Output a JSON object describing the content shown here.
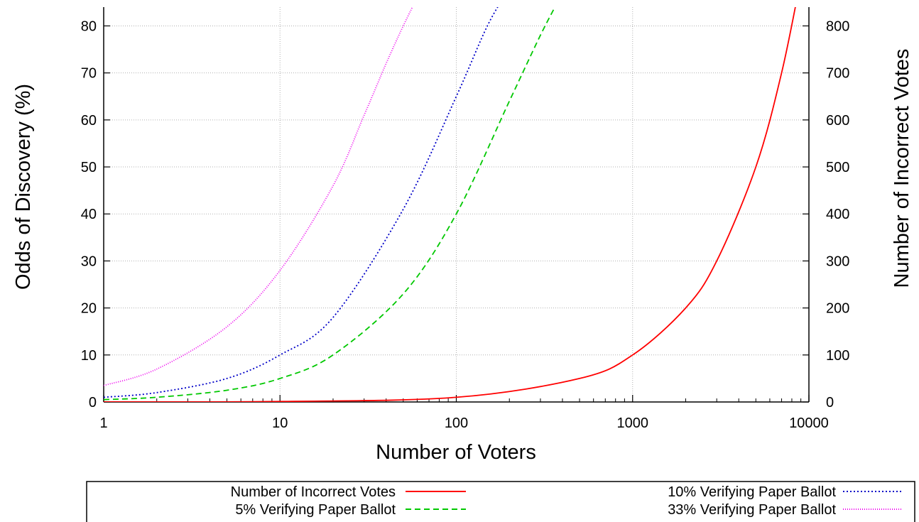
{
  "chart_data": {
    "type": "line",
    "xlabel": "Number of Voters",
    "ylabel": "Odds of Discovery (%)",
    "y2label": "Number of Incorrect Votes",
    "x_scale": "log",
    "xlim": [
      1,
      10000
    ],
    "ylim": [
      0,
      84
    ],
    "y2lim": [
      0,
      840
    ],
    "x_ticks": [
      1,
      10,
      100,
      1000,
      10000
    ],
    "x_tick_labels": [
      "1",
      "10",
      "100",
      "1000",
      "10000"
    ],
    "y_ticks": [
      0,
      10,
      20,
      30,
      40,
      50,
      60,
      70,
      80
    ],
    "y_tick_labels": [
      "0",
      "10",
      "20",
      "30",
      "40",
      "50",
      "60",
      "70",
      "80"
    ],
    "y2_ticks": [
      0,
      100,
      200,
      300,
      400,
      500,
      600,
      700,
      800
    ],
    "y2_tick_labels": [
      "0",
      "100",
      "200",
      "300",
      "400",
      "500",
      "600",
      "700",
      "800"
    ],
    "grid": true,
    "legend_position": "bottom",
    "series": [
      {
        "name": "Number of Incorrect Votes",
        "axis": "right",
        "color": "#ff0000",
        "style": "solid",
        "x": [
          1,
          10,
          100,
          500,
          1000,
          2000,
          3000,
          5000,
          7000,
          9000
        ],
        "values": [
          0.1,
          1,
          10,
          50,
          100,
          200,
          300,
          500,
          700,
          900
        ]
      },
      {
        "name": "10% Verifying Paper Ballot",
        "axis": "left",
        "color": "#0000c8",
        "style": "dotted",
        "x": [
          1,
          2,
          5,
          10,
          20,
          50,
          100,
          150,
          200
        ],
        "values": [
          1,
          2,
          5,
          10,
          18,
          41,
          65,
          80,
          88
        ]
      },
      {
        "name": "5% Verifying Paper Ballot",
        "axis": "left",
        "color": "#00c800",
        "style": "dashed",
        "x": [
          1,
          2,
          5,
          10,
          20,
          50,
          100,
          200,
          300,
          400
        ],
        "values": [
          0.5,
          1,
          2.5,
          5,
          10,
          23,
          40,
          64,
          78,
          87
        ]
      },
      {
        "name": "33% Verifying Paper Ballot",
        "axis": "left",
        "color": "#ee00ee",
        "style": "dotted",
        "x": [
          1,
          2,
          5,
          10,
          20,
          30,
          40,
          50,
          60
        ],
        "values": [
          3.5,
          7,
          16,
          28,
          46,
          61,
          72,
          80,
          86
        ]
      }
    ]
  },
  "legend": {
    "entries": [
      "Number of Incorrect Votes",
      "10% Verifying Paper Ballot",
      "5% Verifying Paper Ballot",
      "33% Verifying Paper Ballot"
    ]
  }
}
